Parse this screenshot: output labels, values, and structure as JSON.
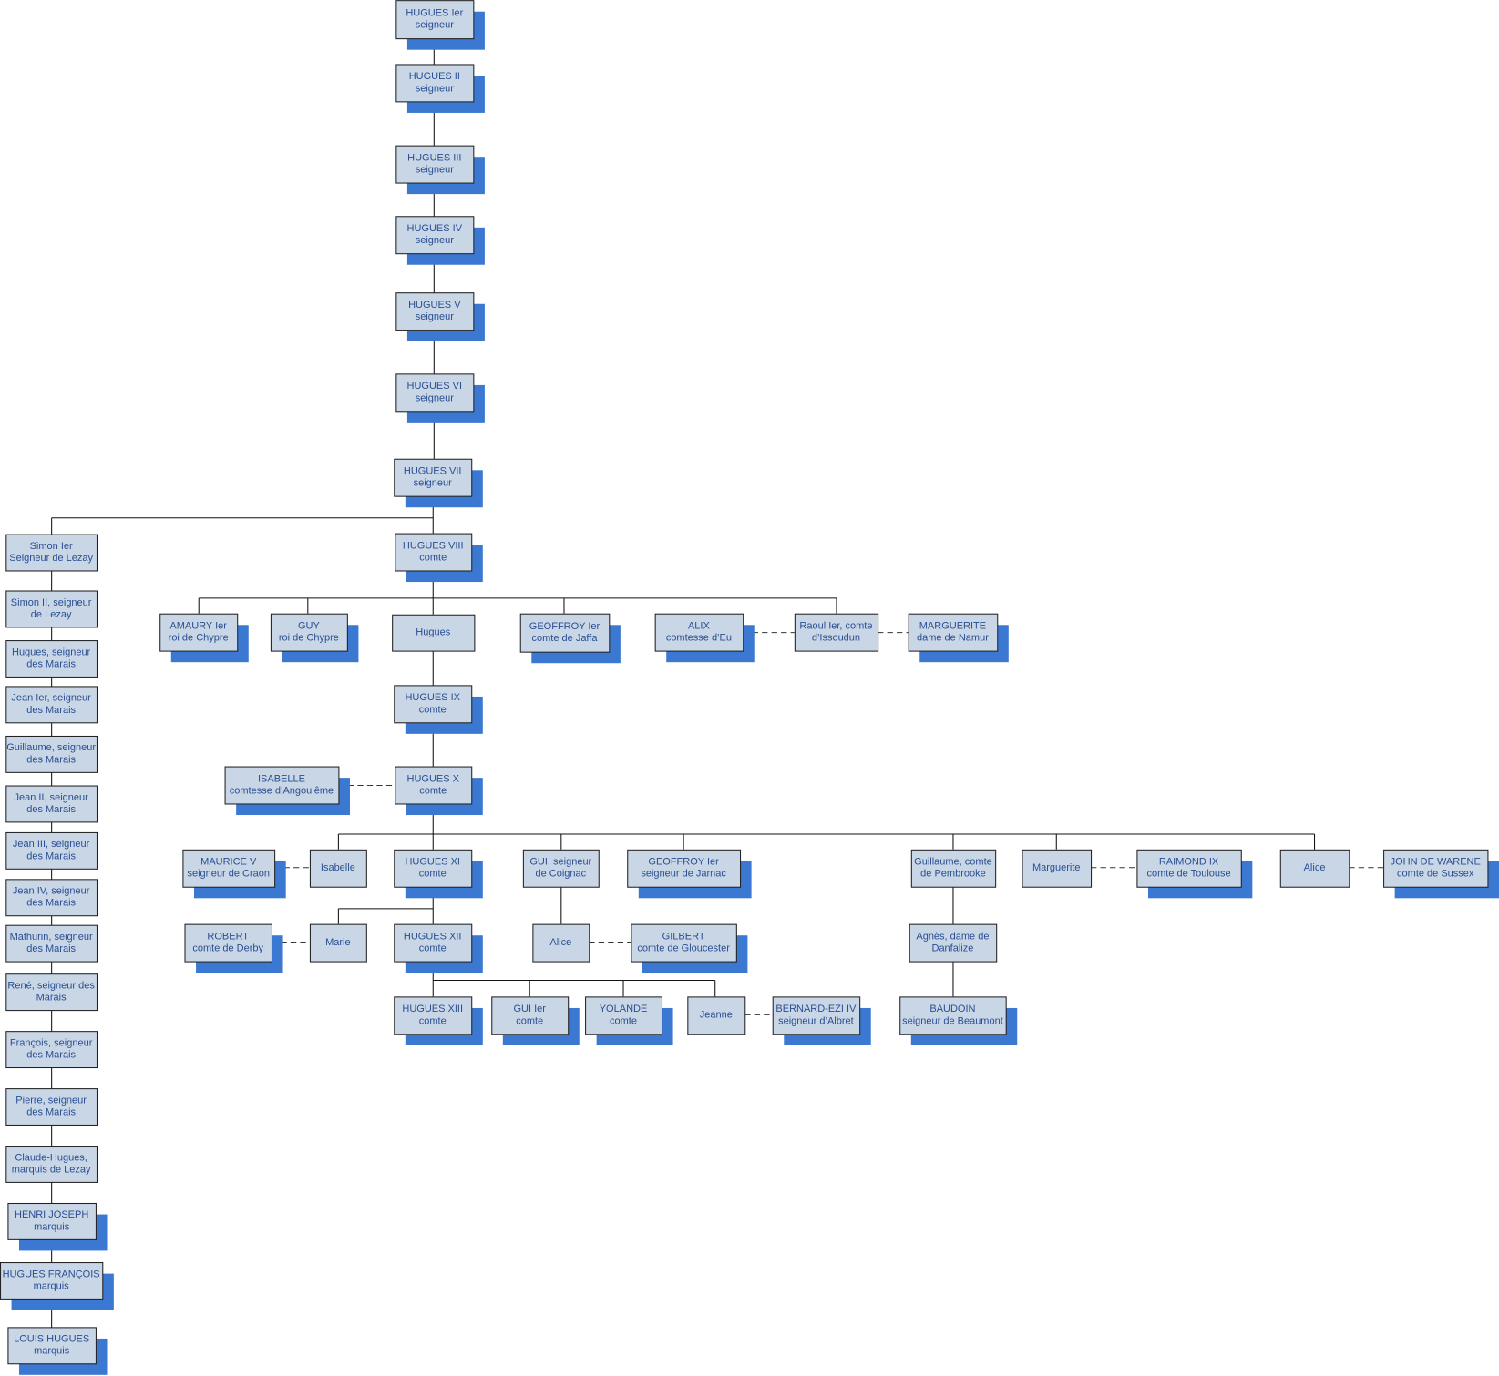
{
  "nodes": [
    {
      "lines": [
        "HUGUES Ier",
        "seigneur"
      ]
    },
    {
      "lines": [
        "HUGUES II",
        "seigneur"
      ]
    },
    {
      "lines": [
        "HUGUES III",
        "seigneur"
      ]
    },
    {
      "lines": [
        "HUGUES IV",
        "seigneur"
      ]
    },
    {
      "lines": [
        "HUGUES V",
        "seigneur"
      ]
    },
    {
      "lines": [
        "HUGUES VI",
        "seigneur"
      ]
    },
    {
      "lines": [
        "HUGUES VII",
        "seigneur"
      ]
    },
    {
      "lines": [
        "Simon Ier",
        "Seigneur de Lezay"
      ]
    },
    {
      "lines": [
        "HUGUES VIII",
        "comte"
      ]
    },
    {
      "lines": [
        "AMAURY Ier",
        "roi de Chypre"
      ]
    },
    {
      "lines": [
        "GUY",
        "roi de Chypre"
      ]
    },
    {
      "lines": [
        "Hugues"
      ]
    },
    {
      "lines": [
        "GEOFFROY Ier",
        "comte de Jaffa"
      ]
    },
    {
      "lines": [
        "ALIX",
        "comtesse d’Eu"
      ]
    },
    {
      "lines": [
        "Raoul Ier, comte",
        "d’Issoudun"
      ]
    },
    {
      "lines": [
        "MARGUERITE",
        "dame de Namur"
      ]
    },
    {
      "lines": [
        "HUGUES IX",
        "comte"
      ]
    },
    {
      "lines": [
        "ISABELLE",
        "comtesse d’Angoulême"
      ]
    },
    {
      "lines": [
        "HUGUES X",
        "comte"
      ]
    },
    {
      "lines": [
        "Simon II, seigneur",
        "de Lezay"
      ]
    },
    {
      "lines": [
        "Hugues, seigneur",
        "des Marais"
      ]
    },
    {
      "lines": [
        "Jean Ier, seigneur",
        "des Marais"
      ]
    },
    {
      "lines": [
        "Guillaume, seigneur",
        "des Marais"
      ]
    },
    {
      "lines": [
        "Jean II, seigneur",
        "des Marais"
      ]
    },
    {
      "lines": [
        "Jean III, seigneur",
        "des Marais"
      ]
    },
    {
      "lines": [
        "Jean IV, seigneur",
        "des Marais"
      ]
    },
    {
      "lines": [
        "Mathurin, seigneur",
        "des Marais"
      ]
    },
    {
      "lines": [
        "René, seigneur des",
        "Marais"
      ]
    },
    {
      "lines": [
        "François, seigneur",
        "des Marais"
      ]
    },
    {
      "lines": [
        "Pierre, seigneur",
        "des Marais"
      ]
    },
    {
      "lines": [
        "Claude-Hugues,",
        "marquis de Lezay"
      ]
    },
    {
      "lines": [
        "HENRI JOSEPH",
        "marquis"
      ]
    },
    {
      "lines": [
        "HUGUES FRANÇOIS",
        "marquis"
      ]
    },
    {
      "lines": [
        "LOUIS HUGUES",
        "marquis"
      ]
    },
    {
      "lines": [
        "MAURICE V",
        "seigneur de Craon"
      ]
    },
    {
      "lines": [
        "Isabelle"
      ]
    },
    {
      "lines": [
        "HUGUES XI",
        "comte"
      ]
    },
    {
      "lines": [
        "GUI, seigneur",
        "de Coignac"
      ]
    },
    {
      "lines": [
        "GEOFFROY Ier",
        "seigneur de Jarnac"
      ]
    },
    {
      "lines": [
        "Guillaume, comte",
        "de Pembrooke"
      ]
    },
    {
      "lines": [
        "Marguerite"
      ]
    },
    {
      "lines": [
        "RAIMOND IX",
        "comte de Toulouse"
      ]
    },
    {
      "lines": [
        "Alice"
      ]
    },
    {
      "lines": [
        "JOHN DE WARENE",
        "comte de Sussex"
      ]
    },
    {
      "lines": [
        "ROBERT",
        "comte de Derby"
      ]
    },
    {
      "lines": [
        "Marie"
      ]
    },
    {
      "lines": [
        "HUGUES XII",
        "comte"
      ]
    },
    {
      "lines": [
        "Alice"
      ]
    },
    {
      "lines": [
        "GILBERT",
        "comte de Gloucester"
      ]
    },
    {
      "lines": [
        "Agnès, dame de",
        "Danfalize"
      ]
    },
    {
      "lines": [
        "HUGUES XIII",
        "comte"
      ]
    },
    {
      "lines": [
        "GUI Ier",
        "comte"
      ]
    },
    {
      "lines": [
        "YOLANDE",
        "comte"
      ]
    },
    {
      "lines": [
        "Jeanne"
      ]
    },
    {
      "lines": [
        "BERNARD-EZI IV",
        "seigneur d’Albret"
      ]
    },
    {
      "lines": [
        "BAUDOIN",
        "seigneur de Beaumont"
      ]
    }
  ]
}
